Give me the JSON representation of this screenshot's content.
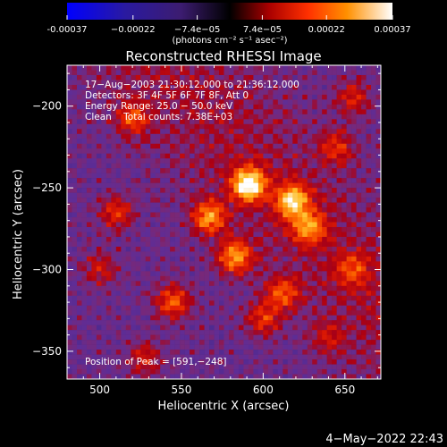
{
  "chart_data": {
    "type": "heatmap",
    "title": "Reconstructed RHESSI Image",
    "xlabel": "Heliocentric X (arcsec)",
    "ylabel": "Heliocentric Y (arcsec)",
    "xlim": [
      480,
      672
    ],
    "ylim": [
      -367,
      -175
    ],
    "x_ticks": [
      500,
      550,
      600,
      650
    ],
    "x_tick_labels": [
      "500",
      "550",
      "600",
      "650"
    ],
    "y_ticks": [
      -200,
      -250,
      -300,
      -350
    ],
    "y_tick_labels": [
      "−200",
      "−250",
      "−300",
      "−350"
    ],
    "colorbar": {
      "min": -0.00037,
      "max": 0.00037,
      "ticks": [
        -0.00037,
        -0.00022,
        -7.4e-05,
        7.4e-05,
        0.00022,
        0.00037
      ],
      "tick_labels": [
        "-0.00037",
        "−0.00022",
        "−7.4e−05",
        "7.4e−05",
        "0.00022",
        "0.00037"
      ],
      "unit_label": "(photons cm⁻² s⁻¹ asec⁻²)"
    },
    "annotations": {
      "time_range": "17−Aug−2003 21:30:12.000 to 21:36:12.000",
      "detectors": "Detectors: 3F 4F 5F 6F 7F 8F, Att 0",
      "energy_range": "Energy Range: 25.0 − 50.0 keV",
      "method": "Clean    Total counts: 7.38E+03",
      "peak": "Position of Peak = [591,−248]"
    },
    "peak": [
      591,
      -248
    ],
    "sources": [
      {
        "x": 591,
        "y": -248,
        "peak": 0.00037
      },
      {
        "x": 618,
        "y": -258,
        "peak": 0.0003
      },
      {
        "x": 567,
        "y": -268,
        "peak": 0.00025
      },
      {
        "x": 583,
        "y": -292,
        "peak": 0.00026
      },
      {
        "x": 628,
        "y": -274,
        "peak": 0.00022
      },
      {
        "x": 545,
        "y": -320,
        "peak": 0.0002
      },
      {
        "x": 612,
        "y": -315,
        "peak": 0.00018
      },
      {
        "x": 510,
        "y": -265,
        "peak": 0.00015
      },
      {
        "x": 520,
        "y": -208,
        "peak": 0.00016
      },
      {
        "x": 645,
        "y": -225,
        "peak": 0.00014
      },
      {
        "x": 655,
        "y": -300,
        "peak": 0.00014
      },
      {
        "x": 600,
        "y": -330,
        "peak": 0.00015
      },
      {
        "x": 528,
        "y": -355,
        "peak": 0.00012
      },
      {
        "x": 640,
        "y": -342,
        "peak": 0.0001
      },
      {
        "x": 655,
        "y": -195,
        "peak": 0.00013
      },
      {
        "x": 500,
        "y": -300,
        "peak": 0.00011
      }
    ]
  },
  "footer": {
    "date": "4−May−2022 22:43"
  }
}
